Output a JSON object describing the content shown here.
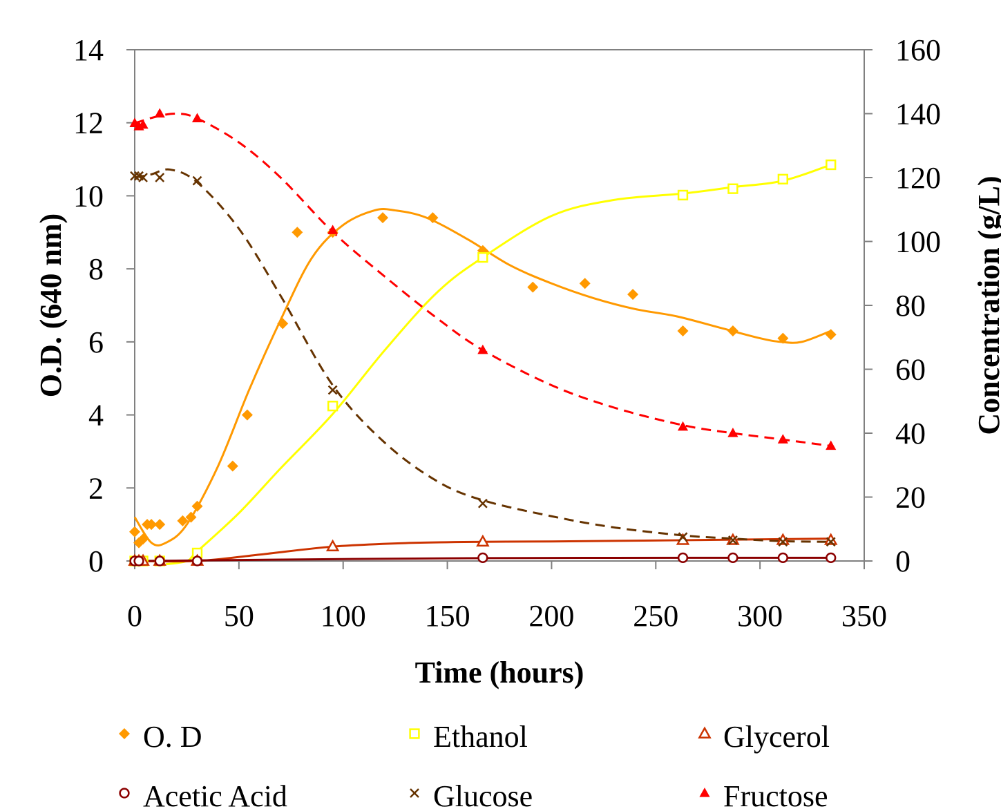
{
  "chart_data": {
    "type": "scatter",
    "title": "",
    "xlabel": "Time (hours)",
    "ylabel": "O.D. (640 nm)",
    "y2label": "Concentration (g/L)",
    "xlim": [
      0,
      350
    ],
    "ylim": [
      0,
      14
    ],
    "y2lim": [
      0,
      160
    ],
    "x_ticks": [
      0,
      50,
      100,
      150,
      200,
      250,
      300,
      350
    ],
    "y_ticks": [
      0,
      2,
      4,
      6,
      8,
      10,
      12,
      14
    ],
    "y2_ticks": [
      0,
      20,
      40,
      60,
      80,
      100,
      120,
      140,
      160
    ],
    "grid": false,
    "legend_position": "bottom",
    "series": [
      {
        "name": "O. D",
        "axis": "left",
        "marker": "diamond",
        "color": "#FF9900",
        "trendline": "solid",
        "x": [
          0,
          2,
          4,
          6,
          8,
          12,
          23,
          27,
          30,
          47,
          54,
          71,
          78,
          95,
          119,
          143,
          167,
          191,
          216,
          239,
          263,
          287,
          311,
          334
        ],
        "y": [
          0.8,
          0.5,
          0.6,
          1.0,
          1.0,
          1.0,
          1.1,
          1.2,
          1.5,
          2.6,
          4.0,
          6.5,
          9.0,
          9.0,
          9.4,
          9.4,
          8.5,
          7.5,
          7.6,
          7.3,
          6.3,
          6.3,
          6.1,
          6.2
        ]
      },
      {
        "name": "Ethanol",
        "axis": "right",
        "marker": "square",
        "color": "#FFFF00",
        "trendline": "solid",
        "x": [
          0,
          2,
          4,
          12,
          30,
          95,
          167,
          263,
          287,
          311,
          334
        ],
        "y": [
          0,
          0,
          0,
          0,
          2.5,
          48.5,
          95,
          114.5,
          116.5,
          119.5,
          124
        ]
      },
      {
        "name": "Glycerol",
        "axis": "right",
        "marker": "triangle-open",
        "color": "#CC3300",
        "trendline": "solid",
        "x": [
          0,
          2,
          4,
          12,
          30,
          95,
          167,
          263,
          287,
          311,
          334
        ],
        "y": [
          0,
          0,
          0,
          0,
          0,
          4.5,
          6,
          6.5,
          6.5,
          6.5,
          6.5
        ]
      },
      {
        "name": "Acetic Acid",
        "axis": "right",
        "marker": "circle-open",
        "color": "#8B0000",
        "trendline": "solid",
        "x": [
          0,
          2,
          12,
          30,
          167,
          263,
          287,
          311,
          334
        ],
        "y": [
          0,
          0,
          0,
          0,
          1,
          1,
          1,
          1,
          1
        ]
      },
      {
        "name": "Glucose",
        "axis": "right",
        "marker": "x",
        "color": "#663300",
        "trendline": "dashed",
        "x": [
          0,
          2,
          4,
          12,
          30,
          95,
          167,
          263,
          287,
          311,
          334
        ],
        "y": [
          120.5,
          120.5,
          120,
          120,
          119,
          53.5,
          18,
          7.5,
          6.5,
          6,
          6
        ]
      },
      {
        "name": "Fructose",
        "axis": "right",
        "marker": "triangle",
        "color": "#FF0000",
        "trendline": "dashed",
        "x": [
          0,
          2,
          4,
          12,
          30,
          95,
          167,
          263,
          287,
          311,
          334
        ],
        "y": [
          137,
          136,
          136.5,
          140,
          138.5,
          103.5,
          66,
          42,
          40,
          38,
          36
        ]
      }
    ],
    "fitted_curves": [
      {
        "series": "O. D",
        "axis": "left",
        "points": [
          [
            0,
            1.2
          ],
          [
            8,
            0.5
          ],
          [
            15,
            0.5
          ],
          [
            25,
            1.0
          ],
          [
            40,
            2.6
          ],
          [
            55,
            4.7
          ],
          [
            70,
            6.6
          ],
          [
            85,
            8.3
          ],
          [
            100,
            9.2
          ],
          [
            115,
            9.6
          ],
          [
            125,
            9.6
          ],
          [
            140,
            9.4
          ],
          [
            160,
            8.8
          ],
          [
            180,
            8.1
          ],
          [
            200,
            7.6
          ],
          [
            220,
            7.2
          ],
          [
            240,
            6.9
          ],
          [
            260,
            6.7
          ],
          [
            280,
            6.4
          ],
          [
            300,
            6.1
          ],
          [
            310,
            6.0
          ],
          [
            320,
            6.0
          ],
          [
            334,
            6.3
          ]
        ]
      },
      {
        "series": "Ethanol",
        "axis": "right",
        "points": [
          [
            15,
            -1
          ],
          [
            25,
            0
          ],
          [
            30,
            3
          ],
          [
            50,
            15
          ],
          [
            70,
            29
          ],
          [
            95,
            46
          ],
          [
            120,
            66
          ],
          [
            145,
            84
          ],
          [
            167,
            95
          ],
          [
            200,
            108
          ],
          [
            230,
            113
          ],
          [
            263,
            115
          ],
          [
            287,
            117
          ],
          [
            311,
            119
          ],
          [
            334,
            124
          ]
        ]
      },
      {
        "series": "Glycerol",
        "axis": "right",
        "points": [
          [
            0,
            0
          ],
          [
            30,
            0
          ],
          [
            60,
            2
          ],
          [
            95,
            4.5
          ],
          [
            130,
            5.6
          ],
          [
            167,
            6
          ],
          [
            200,
            6.1
          ],
          [
            263,
            6.5
          ],
          [
            334,
            7
          ]
        ]
      },
      {
        "series": "Acetic Acid",
        "axis": "right",
        "points": [
          [
            0,
            0
          ],
          [
            50,
            0.3
          ],
          [
            100,
            0.6
          ],
          [
            167,
            0.9
          ],
          [
            263,
            1
          ],
          [
            334,
            1
          ]
        ]
      },
      {
        "series": "Glucose",
        "axis": "right",
        "points": [
          [
            0,
            120
          ],
          [
            8,
            121
          ],
          [
            17,
            122.5
          ],
          [
            30,
            118.5
          ],
          [
            50,
            104
          ],
          [
            70,
            83
          ],
          [
            95,
            55
          ],
          [
            120,
            37
          ],
          [
            145,
            25
          ],
          [
            167,
            19
          ],
          [
            200,
            14
          ],
          [
            230,
            10.5
          ],
          [
            263,
            8
          ],
          [
            287,
            7
          ],
          [
            311,
            6.2
          ],
          [
            334,
            6
          ]
        ]
      },
      {
        "series": "Fructose",
        "axis": "right",
        "points": [
          [
            0,
            137
          ],
          [
            10,
            139
          ],
          [
            20,
            140
          ],
          [
            30,
            138.5
          ],
          [
            50,
            131
          ],
          [
            70,
            120
          ],
          [
            95,
            103
          ],
          [
            120,
            89
          ],
          [
            145,
            76
          ],
          [
            167,
            66
          ],
          [
            200,
            55
          ],
          [
            230,
            48
          ],
          [
            263,
            42.5
          ],
          [
            287,
            40
          ],
          [
            311,
            38
          ],
          [
            334,
            36
          ]
        ]
      }
    ]
  }
}
